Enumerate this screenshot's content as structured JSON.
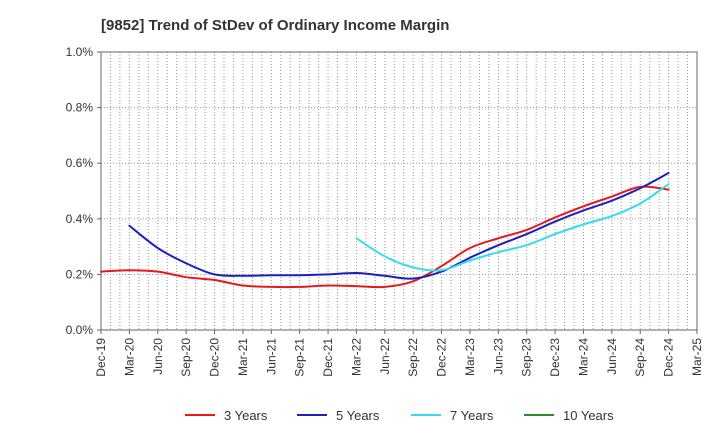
{
  "chart_data": {
    "type": "line",
    "title": "[9852]  Trend of StDev of Ordinary Income Margin",
    "xlabel": "",
    "ylabel": "",
    "x_ticks": [
      "Dec-19",
      "Mar-20",
      "Jun-20",
      "Sep-20",
      "Dec-20",
      "Mar-21",
      "Jun-21",
      "Sep-21",
      "Dec-21",
      "Mar-22",
      "Jun-22",
      "Sep-22",
      "Dec-22",
      "Mar-23",
      "Jun-23",
      "Sep-23",
      "Dec-23",
      "Mar-24",
      "Jun-24",
      "Sep-24",
      "Dec-24",
      "Mar-25"
    ],
    "y_ticks": [
      "0.0%",
      "0.2%",
      "0.4%",
      "0.6%",
      "0.8%",
      "1.0%"
    ],
    "ylim": [
      0,
      1.0
    ],
    "y_unit": "%",
    "grid": true,
    "legend_position": "bottom",
    "series": [
      {
        "name": "3 Years",
        "color": "#e41a1c",
        "x": [
          "Dec-19",
          "Mar-20",
          "Jun-20",
          "Sep-20",
          "Dec-20",
          "Mar-21",
          "Jun-21",
          "Sep-21",
          "Dec-21",
          "Mar-22",
          "Jun-22",
          "Sep-22",
          "Dec-22",
          "Mar-23",
          "Jun-23",
          "Sep-23",
          "Dec-23",
          "Mar-24",
          "Jun-24",
          "Sep-24",
          "Dec-24"
        ],
        "values": [
          0.21,
          0.215,
          0.21,
          0.19,
          0.18,
          0.16,
          0.155,
          0.155,
          0.16,
          0.158,
          0.155,
          0.175,
          0.23,
          0.295,
          0.33,
          0.36,
          0.405,
          0.445,
          0.48,
          0.515,
          0.505
        ]
      },
      {
        "name": "5 Years",
        "color": "#1f1fbf",
        "x": [
          "Mar-20",
          "Jun-20",
          "Sep-20",
          "Dec-20",
          "Mar-21",
          "Jun-21",
          "Sep-21",
          "Dec-21",
          "Mar-22",
          "Jun-22",
          "Sep-22",
          "Dec-22",
          "Mar-23",
          "Jun-23",
          "Sep-23",
          "Dec-23",
          "Mar-24",
          "Jun-24",
          "Sep-24",
          "Dec-24"
        ],
        "values": [
          0.375,
          0.295,
          0.24,
          0.2,
          0.195,
          0.197,
          0.197,
          0.2,
          0.205,
          0.195,
          0.185,
          0.21,
          0.26,
          0.305,
          0.345,
          0.39,
          0.43,
          0.465,
          0.51,
          0.565
        ]
      },
      {
        "name": "7 Years",
        "color": "#33ddee",
        "x": [
          "Mar-22",
          "Jun-22",
          "Sep-22",
          "Dec-22",
          "Mar-23",
          "Jun-23",
          "Sep-23",
          "Dec-23",
          "Mar-24",
          "Jun-24",
          "Sep-24",
          "Dec-24"
        ],
        "values": [
          0.33,
          0.265,
          0.225,
          0.215,
          0.25,
          0.28,
          0.305,
          0.345,
          0.38,
          0.41,
          0.455,
          0.525
        ]
      },
      {
        "name": "10 Years",
        "color": "#2a8a2a",
        "x": [],
        "values": []
      }
    ]
  }
}
